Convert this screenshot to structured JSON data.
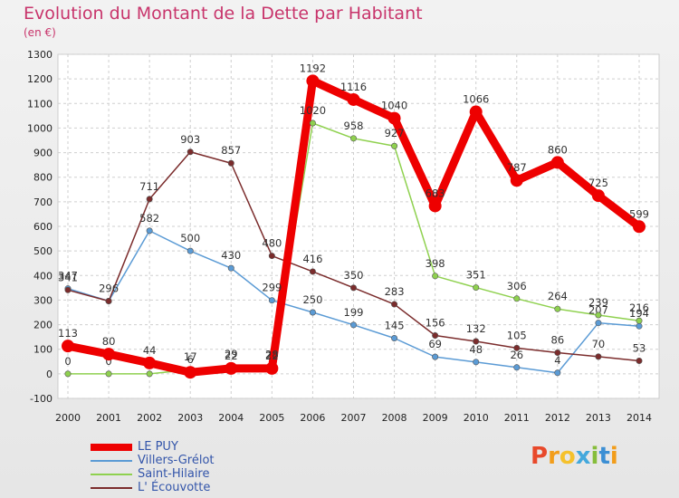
{
  "title": "Evolution du Montant de la Dette par Habitant",
  "subtitle": "(en €)",
  "logo": [
    "P",
    "r",
    "o",
    "x",
    "i",
    "t",
    "i"
  ],
  "logo_colors": [
    "#e8492b",
    "#f29d1b",
    "#f5c12c",
    "#43a8dc",
    "#86bd3b",
    "#3c8fd4",
    "#f29d1b"
  ],
  "chart_data": {
    "type": "line",
    "title": "Evolution du Montant de la Dette par Habitant",
    "ylabel": "(en €)",
    "xlabel": "",
    "ylim": [
      -100,
      1300
    ],
    "yticks": [
      -100,
      0,
      100,
      200,
      300,
      400,
      500,
      600,
      700,
      800,
      900,
      1000,
      1100,
      1200,
      1300
    ],
    "grid": true,
    "legend": "bottom-left",
    "x": [
      "2000",
      "2001",
      "2002",
      "2003",
      "2004",
      "2005",
      "2006",
      "2007",
      "2008",
      "2009",
      "2010",
      "2011",
      "2012",
      "2013",
      "2014"
    ],
    "series": [
      {
        "name": "Villers-Grélot",
        "color": "#5b9bd5",
        "values": [
          347,
          296,
          582,
          500,
          430,
          299,
          250,
          199,
          145,
          69,
          48,
          26,
          4,
          207,
          194
        ],
        "labels": [
          "347",
          "296",
          "582",
          "500",
          "430",
          "299",
          "250",
          "199",
          "145",
          "69",
          "48",
          "26",
          "4",
          "207",
          "194"
        ]
      },
      {
        "name": "Saint-Hilaire",
        "color": "#8fd14f",
        "values": [
          0,
          0,
          0,
          17,
          29,
          28,
          1020,
          958,
          927,
          398,
          351,
          306,
          264,
          239,
          216
        ],
        "labels": [
          "0",
          "0",
          "",
          "17",
          "29",
          "28",
          "1020",
          "958",
          "927",
          "398",
          "351",
          "306",
          "264",
          "239",
          "216"
        ]
      },
      {
        "name": "L' Écouvotte",
        "color": "#7b2c2c",
        "values": [
          341,
          296,
          711,
          903,
          857,
          480,
          416,
          350,
          283,
          156,
          132,
          105,
          86,
          70,
          53
        ],
        "labels": [
          "341",
          "",
          "711",
          "903",
          "857",
          "480",
          "416",
          "350",
          "283",
          "156",
          "132",
          "105",
          "86",
          "70",
          "53"
        ]
      },
      {
        "name": "LE PUY",
        "color": "#ee0000",
        "values": [
          113,
          80,
          44,
          6,
          22,
          22,
          1192,
          1116,
          1040,
          683,
          1066,
          787,
          860,
          725,
          599
        ],
        "labels": [
          "113",
          "80",
          "44",
          "6",
          "22",
          "22",
          "1192",
          "1116",
          "1040",
          "683",
          "1066",
          "787",
          "860",
          "725",
          "599"
        ]
      }
    ],
    "legend_order": [
      "LE PUY",
      "Villers-Grélot",
      "Saint-Hilaire",
      "L' Écouvotte"
    ]
  }
}
